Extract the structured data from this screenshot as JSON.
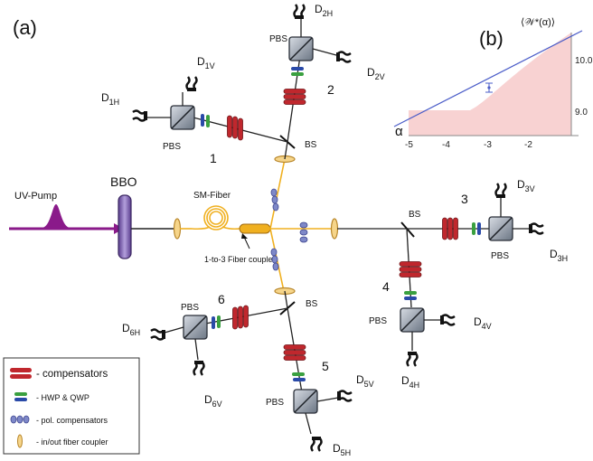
{
  "panel_a_label": "(a)",
  "panel_b_label": "(b)",
  "source": {
    "label": "UV-Pump"
  },
  "crystal": {
    "label": "BBO"
  },
  "fiber": {
    "label": "SM-Fiber",
    "coupler_label": "1-to-3 Fiber coupler"
  },
  "beam_splitter_label": "BS",
  "pbs_label": "PBS",
  "modules": [
    {
      "number": "1",
      "det_a": "D",
      "det_a_sub": "1V",
      "det_b": "D",
      "det_b_sub": "1H"
    },
    {
      "number": "2",
      "det_a": "D",
      "det_a_sub": "2H",
      "det_b": "D",
      "det_b_sub": "2V"
    },
    {
      "number": "3",
      "det_a": "D",
      "det_a_sub": "3V",
      "det_b": "D",
      "det_b_sub": "3H"
    },
    {
      "number": "4",
      "det_a": "D",
      "det_a_sub": "4V",
      "det_b": "D",
      "det_b_sub": "4H"
    },
    {
      "number": "5",
      "det_a": "D",
      "det_a_sub": "5V",
      "det_b": "D",
      "det_b_sub": "5H"
    },
    {
      "number": "6",
      "det_a": "D",
      "det_a_sub": "6H",
      "det_b": "D",
      "det_b_sub": "6V"
    }
  ],
  "legend": [
    {
      "text": "- compensators",
      "icon": "compensator-icon"
    },
    {
      "text": "- HWP & QWP",
      "icon": "waveplate-icon"
    },
    {
      "text": "- pol. compensators",
      "icon": "pol-compensator-icon"
    },
    {
      "text": "- in/out fiber coupler",
      "icon": "fiber-coupler-icon"
    }
  ],
  "inset": {
    "ylabel": "⟨𝒲*(α)⟩",
    "xlabel": "α",
    "xticks": [
      "-5",
      "-4",
      "-3",
      "-2"
    ],
    "yticks": [
      "10.0",
      "9.0"
    ]
  },
  "colors": {
    "fiber": "#f0b020",
    "pump": "#8a1a8a",
    "compensator": "#c0272d",
    "hwp": "#3aa040",
    "qwp": "#2a4aa8",
    "shade": "#f8d2d2",
    "fit": "#4a5cc8"
  }
}
